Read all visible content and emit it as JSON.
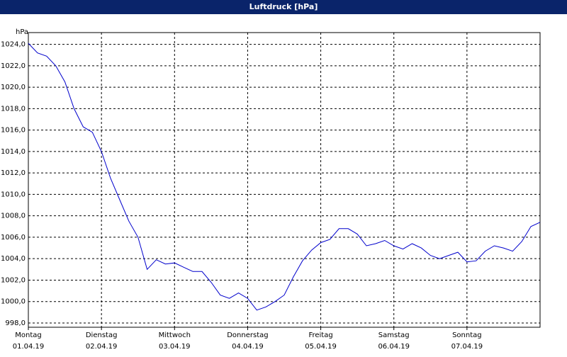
{
  "chart_data": {
    "type": "line",
    "title": "Luftdruck [hPa]",
    "y_label": "hPa",
    "ylim": [
      997.6,
      1025.1
    ],
    "yticks": [
      {
        "value": 998,
        "label": "998,0"
      },
      {
        "value": 1000,
        "label": "1000,0"
      },
      {
        "value": 1002,
        "label": "1002,0"
      },
      {
        "value": 1004,
        "label": "1004,0"
      },
      {
        "value": 1006,
        "label": "1006,0"
      },
      {
        "value": 1008,
        "label": "1008,0"
      },
      {
        "value": 1010,
        "label": "1010,0"
      },
      {
        "value": 1012,
        "label": "1012,0"
      },
      {
        "value": 1014,
        "label": "1014,0"
      },
      {
        "value": 1016,
        "label": "1016,0"
      },
      {
        "value": 1018,
        "label": "1018,0"
      },
      {
        "value": 1020,
        "label": "1020,0"
      },
      {
        "value": 1022,
        "label": "1022,0"
      },
      {
        "value": 1024,
        "label": "1024,0"
      }
    ],
    "xlim": [
      0,
      7
    ],
    "xticks": [
      {
        "value": 0,
        "label": "Montag",
        "date": "01.04.19"
      },
      {
        "value": 1,
        "label": "Dienstag",
        "date": "02.04.19"
      },
      {
        "value": 2,
        "label": "Mittwoch",
        "date": "03.04.19"
      },
      {
        "value": 3,
        "label": "Donnerstag",
        "date": "04.04.19"
      },
      {
        "value": 4,
        "label": "Freitag",
        "date": "05.04.19"
      },
      {
        "value": 5,
        "label": "Samstag",
        "date": "06.04.19"
      },
      {
        "value": 6,
        "label": "Sonntag",
        "date": "07.04.19"
      }
    ],
    "grid": true,
    "series": [
      {
        "name": "Luftdruck",
        "color": "#0000cc",
        "values": [
          1024.1,
          1023.2,
          1022.9,
          1022.0,
          1020.5,
          1018.0,
          1016.3,
          1015.8,
          1014.0,
          1011.5,
          1009.5,
          1007.5,
          1006.0,
          1003.0,
          1003.9,
          1003.5,
          1003.6,
          1003.2,
          1002.8,
          1002.8,
          1001.8,
          1000.6,
          1000.3,
          1000.8,
          1000.3,
          999.2,
          999.5,
          1000.0,
          1000.6,
          1002.3,
          1003.8,
          1004.8,
          1005.5,
          1005.8,
          1006.8,
          1006.8,
          1006.3,
          1005.2,
          1005.4,
          1005.7,
          1005.2,
          1004.9,
          1005.4,
          1005.0,
          1004.3,
          1004.0,
          1004.3,
          1004.6,
          1003.7,
          1003.8,
          1004.7,
          1005.2,
          1005.0,
          1004.7,
          1005.6,
          1007.0,
          1007.4
        ]
      }
    ]
  }
}
